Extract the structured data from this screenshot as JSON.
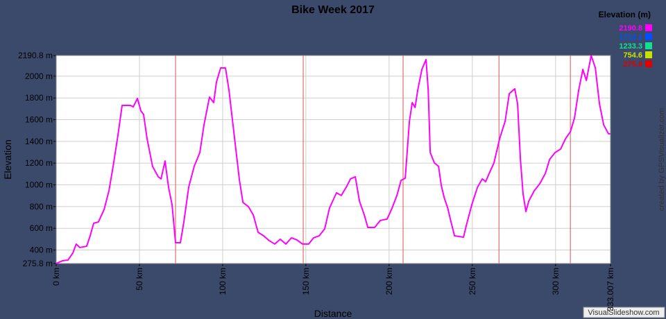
{
  "chart_data": {
    "type": "line",
    "title": "Bike Week 2017",
    "x_label": "Distance",
    "y_label": "Elevation",
    "xlim": [
      0,
      333.007
    ],
    "ylim": [
      275.8,
      2190.8
    ],
    "xticks": [
      {
        "value": 0,
        "label": "0 km"
      },
      {
        "value": 50,
        "label": "50 km"
      },
      {
        "value": 100,
        "label": "100 km"
      },
      {
        "value": 150,
        "label": "150 km"
      },
      {
        "value": 200,
        "label": "200 km"
      },
      {
        "value": 250,
        "label": "250 km"
      },
      {
        "value": 300,
        "label": "300 km"
      },
      {
        "value": 333.007,
        "label": "333.007 km"
      }
    ],
    "yticks": [
      {
        "value": 275.8,
        "label": "275.8 m"
      },
      {
        "value": 400,
        "label": "400 m"
      },
      {
        "value": 600,
        "label": "600 m"
      },
      {
        "value": 800,
        "label": "800 m"
      },
      {
        "value": 1000,
        "label": "1000 m"
      },
      {
        "value": 1200,
        "label": "1200 m"
      },
      {
        "value": 1400,
        "label": "1400 m"
      },
      {
        "value": 1600,
        "label": "1600 m"
      },
      {
        "value": 1800,
        "label": "1800 m"
      },
      {
        "value": 2000,
        "label": "2000 m"
      },
      {
        "value": 2190.8,
        "label": "2190.8 m"
      }
    ],
    "grid": true,
    "day_breaks": [
      71.7,
      148.4,
      208.4,
      266,
      308.9
    ],
    "day_break_color": "#e05050",
    "legend": {
      "title": "Elevation (m)",
      "position": "top-right",
      "items": [
        {
          "value": 2190.8,
          "color": "#ff00ff"
        },
        {
          "value": 1712.1,
          "color": "#0050ff"
        },
        {
          "value": 1233.3,
          "color": "#10e090"
        },
        {
          "value": 754.6,
          "color": "#c8e000"
        },
        {
          "value": 275.8,
          "color": "#e00000"
        }
      ]
    },
    "credit": "created by GPSVisualizer.com",
    "watermark": "VisualSlideshow.com",
    "x": [
      0,
      3.75,
      7.1,
      10,
      12,
      14.2,
      18.3,
      20.4,
      22.5,
      25.4,
      28.8,
      31.7,
      34.2,
      37.1,
      39.6,
      44.6,
      46.3,
      48.8,
      50.9,
      52.5,
      54.6,
      57.9,
      61.3,
      63,
      65.4,
      67.5,
      69.6,
      71.7,
      74.6,
      76.7,
      79.6,
      82.9,
      86.3,
      88.8,
      92.1,
      94.6,
      96.3,
      98.8,
      101.7,
      103.8,
      106.7,
      110.1,
      112.2,
      115.5,
      118.4,
      121.3,
      124.6,
      128,
      131.3,
      134.6,
      138,
      141.3,
      144.6,
      148,
      151.7,
      154.6,
      158,
      161.3,
      164.2,
      168.4,
      171.3,
      174.7,
      176.8,
      179.7,
      182.2,
      185.1,
      187.2,
      191.3,
      194.7,
      198.8,
      201.8,
      204.7,
      207.2,
      209.7,
      212.2,
      213.9,
      215.6,
      217.2,
      219.7,
      222.2,
      223.5,
      224.7,
      227.2,
      229.7,
      231.4,
      233.1,
      235.2,
      237.2,
      239.3,
      244.7,
      246.4,
      249.7,
      253.1,
      256,
      258,
      260.5,
      263,
      266.4,
      269.7,
      272.2,
      275.5,
      277.2,
      278.9,
      280.5,
      282.2,
      283.9,
      287.2,
      290.5,
      293.9,
      296.4,
      299.7,
      303,
      306,
      308.9,
      311.4,
      313.9,
      316.4,
      318.5,
      321.4,
      323.9,
      326.4,
      328.9,
      331.8,
      333.007
    ],
    "series": [
      {
        "name": "Elevation",
        "values": [
          276,
          301,
          308,
          372,
          455,
          423,
          435,
          531,
          646,
          659,
          774,
          946,
          1170,
          1457,
          1731,
          1731,
          1718,
          1795,
          1680,
          1648,
          1425,
          1170,
          1074,
          1055,
          1220,
          978,
          818,
          467,
          467,
          659,
          978,
          1170,
          1297,
          1553,
          1808,
          1757,
          1948,
          2076,
          2076,
          1872,
          1489,
          1042,
          838,
          799,
          723,
          563,
          531,
          486,
          455,
          499,
          455,
          512,
          493,
          455,
          455,
          512,
          531,
          595,
          787,
          927,
          902,
          991,
          1055,
          1074,
          850,
          723,
          608,
          608,
          672,
          685,
          787,
          902,
          1042,
          1061,
          1585,
          1757,
          1712,
          1872,
          2063,
          2153,
          1872,
          1297,
          1202,
          1170,
          991,
          882,
          787,
          659,
          531,
          518,
          627,
          818,
          978,
          1055,
          1029,
          1118,
          1202,
          1425,
          1585,
          1840,
          1884,
          1744,
          1233,
          914,
          754,
          850,
          946,
          1010,
          1106,
          1233,
          1297,
          1329,
          1425,
          1489,
          1617,
          1872,
          2063,
          1961,
          2190.8,
          2076,
          1744,
          1553,
          1470,
          1470
        ]
      }
    ]
  }
}
